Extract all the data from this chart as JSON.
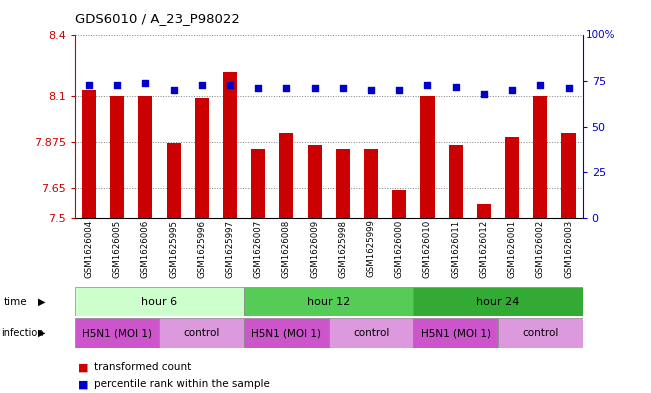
{
  "title": "GDS6010 / A_23_P98022",
  "samples": [
    "GSM1626004",
    "GSM1626005",
    "GSM1626006",
    "GSM1625995",
    "GSM1625996",
    "GSM1625997",
    "GSM1626007",
    "GSM1626008",
    "GSM1626009",
    "GSM1625998",
    "GSM1625999",
    "GSM1626000",
    "GSM1626010",
    "GSM1626011",
    "GSM1626012",
    "GSM1626001",
    "GSM1626002",
    "GSM1626003"
  ],
  "bar_values": [
    8.13,
    8.1,
    8.1,
    7.87,
    8.09,
    8.22,
    7.84,
    7.92,
    7.86,
    7.84,
    7.84,
    7.64,
    8.1,
    7.86,
    7.57,
    7.9,
    8.1,
    7.92
  ],
  "percentile_values": [
    73,
    73,
    74,
    70,
    73,
    73,
    71,
    71,
    71,
    71,
    70,
    70,
    73,
    72,
    68,
    70,
    73,
    71
  ],
  "ylim_left": [
    7.5,
    8.4
  ],
  "ylim_right": [
    0,
    100
  ],
  "yticks_left": [
    7.5,
    7.65,
    7.875,
    8.1,
    8.4
  ],
  "yticks_right": [
    0,
    25,
    50,
    75
  ],
  "bar_color": "#cc0000",
  "dot_color": "#0000cc",
  "bar_bottom": 7.5,
  "group_colors": [
    "#ccffcc",
    "#55cc55",
    "#33aa33"
  ],
  "group_labels": [
    "hour 6",
    "hour 12",
    "hour 24"
  ],
  "group_starts": [
    0,
    6,
    12
  ],
  "group_ends": [
    6,
    12,
    18
  ],
  "infection_colors": [
    "#cc55cc",
    "#dd99dd",
    "#cc55cc",
    "#dd99dd",
    "#cc55cc",
    "#dd99dd"
  ],
  "infection_labels": [
    "H5N1 (MOI 1)",
    "control",
    "H5N1 (MOI 1)",
    "control",
    "H5N1 (MOI 1)",
    "control"
  ],
  "infection_starts": [
    0,
    3,
    6,
    9,
    12,
    15
  ],
  "infection_ends": [
    3,
    6,
    9,
    12,
    15,
    18
  ],
  "time_label": "time",
  "infection_label": "infection",
  "legend_labels": [
    "transformed count",
    "percentile rank within the sample"
  ],
  "legend_colors": [
    "#cc0000",
    "#0000cc"
  ],
  "axis_left_color": "#cc0000",
  "axis_right_color": "#0000cc",
  "background_color": "#ffffff",
  "right_top_label": "100%"
}
